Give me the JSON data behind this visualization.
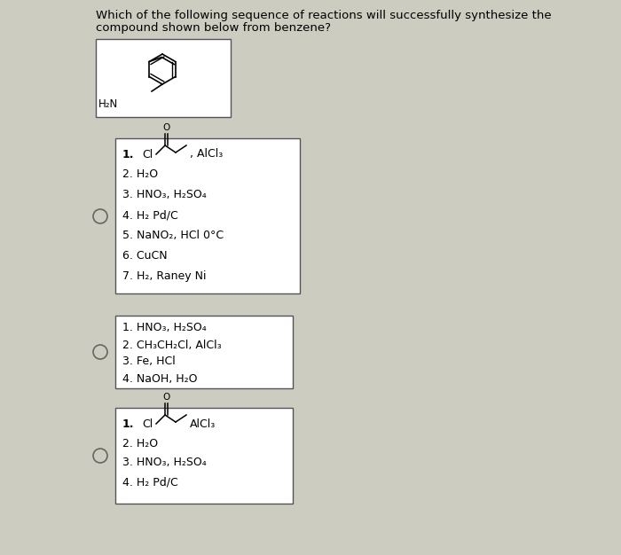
{
  "title_line1": "Which of the following sequence of reactions will successfully synthesize the",
  "title_line2": "compound shown below from benzene?",
  "background_color": "#ccccc0",
  "box_bg": "#ffffff",
  "box_border": "#333333",
  "title_fontsize": 9.5,
  "text_fontsize": 9.0,
  "option1_steps": [
    "2. H₂O",
    "3. HNO₃, H₂SO₄",
    "4. H₂ Pd/C",
    "5. NaNO₂, HCl 0°C",
    "6. CuCN",
    "7. H₂, Raney Ni"
  ],
  "option2_steps": [
    "1. HNO₃, H₂SO₄",
    "2. CH₃CH₂Cl, AlCl₃",
    "3. Fe, HCl",
    "4. NaOH, H₂O"
  ],
  "option3_steps": [
    "2. H₂O",
    "3. HNO₃, H₂SO₄",
    "4. H₂ Pd/C"
  ]
}
